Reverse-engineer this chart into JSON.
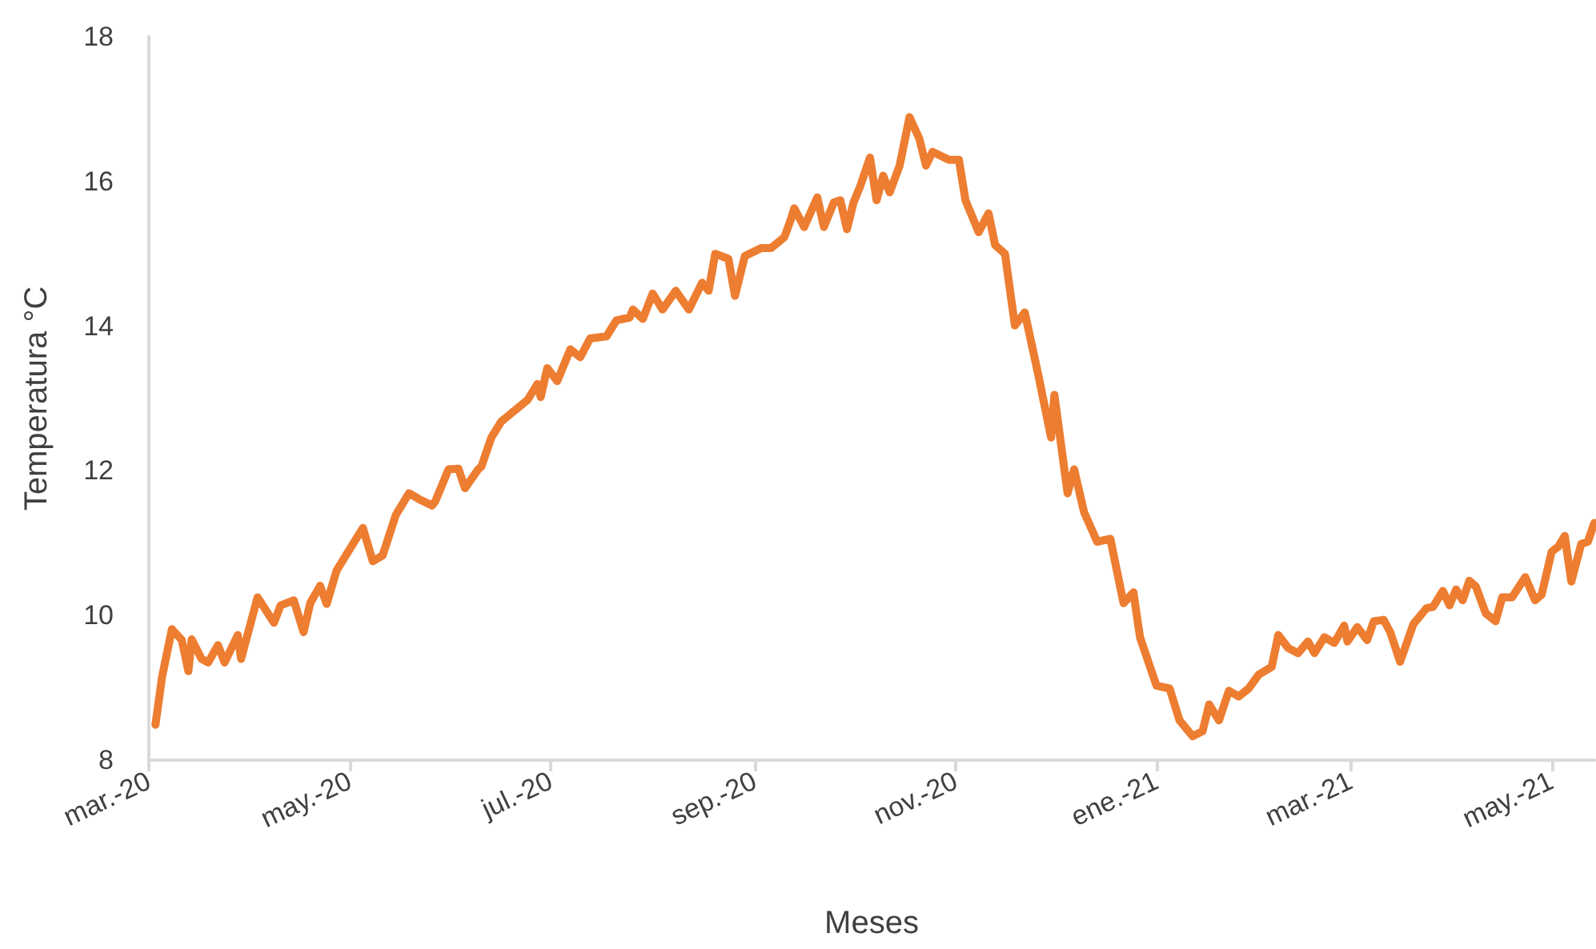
{
  "chart_data": {
    "type": "line",
    "xlabel": "Meses",
    "ylabel": "Temperatura °C",
    "xlim": [
      "2020-03-01",
      "2021-05-14"
    ],
    "xticks": [
      {
        "value": "2020-03-01",
        "label": "mar.-20"
      },
      {
        "value": "2020-05-01",
        "label": "may.-20"
      },
      {
        "value": "2020-07-01",
        "label": "jul.-20"
      },
      {
        "value": "2020-09-01",
        "label": "sep.-20"
      },
      {
        "value": "2020-11-01",
        "label": "nov.-20"
      },
      {
        "value": "2021-01-01",
        "label": "ene.-21"
      },
      {
        "value": "2021-03-01",
        "label": "mar.-21"
      },
      {
        "value": "2021-05-01",
        "label": "may.-21"
      }
    ],
    "ylim": [
      8,
      18
    ],
    "yticks": [
      8,
      10,
      12,
      14,
      16,
      18
    ],
    "grid": false,
    "marker": "none",
    "line_style": "solid",
    "x": [
      "2020-03-03",
      "2020-03-05",
      "2020-03-08",
      "2020-03-11",
      "2020-03-13",
      "2020-03-14",
      "2020-03-17",
      "2020-03-19",
      "2020-03-22",
      "2020-03-24",
      "2020-03-28",
      "2020-03-29",
      "2020-04-03",
      "2020-04-07",
      "2020-04-08",
      "2020-04-10",
      "2020-04-14",
      "2020-04-17",
      "2020-04-19",
      "2020-04-22",
      "2020-04-24",
      "2020-04-27",
      "2020-05-02",
      "2020-05-05",
      "2020-05-08",
      "2020-05-11",
      "2020-05-15",
      "2020-05-19",
      "2020-05-22",
      "2020-05-26",
      "2020-05-27",
      "2020-05-31",
      "2020-06-03",
      "2020-06-05",
      "2020-06-09",
      "2020-06-10",
      "2020-06-13",
      "2020-06-16",
      "2020-06-24",
      "2020-06-27",
      "2020-06-28",
      "2020-06-30",
      "2020-07-03",
      "2020-07-07",
      "2020-07-10",
      "2020-07-13",
      "2020-07-18",
      "2020-07-21",
      "2020-07-25",
      "2020-07-26",
      "2020-07-29",
      "2020-08-01",
      "2020-08-04",
      "2020-08-08",
      "2020-08-12",
      "2020-08-16",
      "2020-08-18",
      "2020-08-20",
      "2020-08-24",
      "2020-08-26",
      "2020-08-29",
      "2020-09-03",
      "2020-09-06",
      "2020-09-10",
      "2020-09-12",
      "2020-09-13",
      "2020-09-16",
      "2020-09-20",
      "2020-09-22",
      "2020-09-25",
      "2020-09-27",
      "2020-09-29",
      "2020-10-01",
      "2020-10-03",
      "2020-10-06",
      "2020-10-08",
      "2020-10-10",
      "2020-10-12",
      "2020-10-15",
      "2020-10-18",
      "2020-10-21",
      "2020-10-23",
      "2020-10-25",
      "2020-10-30",
      "2020-11-02",
      "2020-11-04",
      "2020-11-08",
      "2020-11-11",
      "2020-11-13",
      "2020-11-16",
      "2020-11-19",
      "2020-11-22",
      "2020-11-26",
      "2020-11-30",
      "2020-12-01",
      "2020-12-05",
      "2020-12-07",
      "2020-12-10",
      "2020-12-14",
      "2020-12-18",
      "2020-12-22",
      "2020-12-25",
      "2020-12-27",
      "2021-01-01",
      "2021-01-05",
      "2021-01-08",
      "2021-01-12",
      "2021-01-15",
      "2021-01-17",
      "2021-01-20",
      "2021-01-23",
      "2021-01-26",
      "2021-01-29",
      "2021-02-01",
      "2021-02-05",
      "2021-02-07",
      "2021-02-10",
      "2021-02-13",
      "2021-02-16",
      "2021-02-18",
      "2021-02-21",
      "2021-02-24",
      "2021-02-27",
      "2021-02-28",
      "2021-03-03",
      "2021-03-06",
      "2021-03-08",
      "2021-03-11",
      "2021-03-13",
      "2021-03-16",
      "2021-03-20",
      "2021-03-24",
      "2021-03-26",
      "2021-03-29",
      "2021-03-31",
      "2021-04-02",
      "2021-04-04",
      "2021-04-06",
      "2021-04-08",
      "2021-04-11",
      "2021-04-14",
      "2021-04-16",
      "2021-04-19",
      "2021-04-23",
      "2021-04-26",
      "2021-04-28",
      "2021-05-01",
      "2021-05-03",
      "2021-05-05",
      "2021-05-07",
      "2021-05-10",
      "2021-05-12",
      "2021-05-14"
    ],
    "series": [
      {
        "color": "#ed7d31",
        "values": [
          8.49,
          9.15,
          9.81,
          9.66,
          9.23,
          9.67,
          9.4,
          9.35,
          9.59,
          9.35,
          9.73,
          9.4,
          10.25,
          9.97,
          9.9,
          10.14,
          10.21,
          9.77,
          10.17,
          10.41,
          10.16,
          10.62,
          10.99,
          11.21,
          10.75,
          10.83,
          11.39,
          11.69,
          11.61,
          11.52,
          11.58,
          12.02,
          12.03,
          11.76,
          12.02,
          12.06,
          12.46,
          12.68,
          12.98,
          13.2,
          13.02,
          13.42,
          13.24,
          13.68,
          13.57,
          13.83,
          13.86,
          14.08,
          14.12,
          14.23,
          14.1,
          14.45,
          14.23,
          14.49,
          14.23,
          14.6,
          14.49,
          15.0,
          14.93,
          14.42,
          14.97,
          15.08,
          15.08,
          15.23,
          15.48,
          15.63,
          15.37,
          15.78,
          15.37,
          15.71,
          15.74,
          15.34,
          15.71,
          15.93,
          16.33,
          15.74,
          16.08,
          15.85,
          16.22,
          16.89,
          16.59,
          16.22,
          16.41,
          16.3,
          16.3,
          15.74,
          15.3,
          15.56,
          15.12,
          15.0,
          14.01,
          14.19,
          13.35,
          12.46,
          13.05,
          11.69,
          12.02,
          11.43,
          11.02,
          11.06,
          10.17,
          10.32,
          9.7,
          9.03,
          8.99,
          8.55,
          8.33,
          8.4,
          8.77,
          8.55,
          8.96,
          8.88,
          8.99,
          9.18,
          9.29,
          9.73,
          9.55,
          9.48,
          9.64,
          9.48,
          9.7,
          9.62,
          9.86,
          9.64,
          9.84,
          9.66,
          9.92,
          9.94,
          9.77,
          9.36,
          9.88,
          10.1,
          10.12,
          10.34,
          10.14,
          10.36,
          10.21,
          10.48,
          10.4,
          10.03,
          9.92,
          10.25,
          10.25,
          10.53,
          10.21,
          10.29,
          10.88,
          10.95,
          11.1,
          10.47,
          10.99,
          11.02,
          11.28
        ]
      }
    ]
  }
}
